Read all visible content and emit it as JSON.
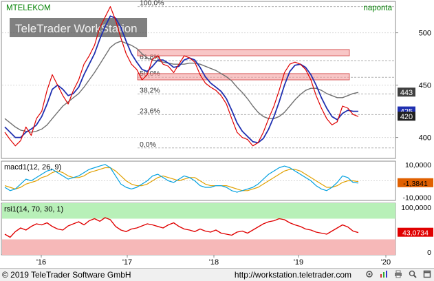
{
  "panel_main": {
    "symbol": "MTELEKOM",
    "period": "naponta",
    "watermark": "TeleTrader WorkStation",
    "price_axis": [
      "500",
      "450",
      "400"
    ],
    "last_badges": [
      {
        "label": "443",
        "color": "#404040"
      },
      {
        "label": "425",
        "color": "#1f2fb0"
      },
      {
        "label": "420",
        "color": "#202020"
      }
    ],
    "fib_labels": [
      "100,0%",
      "61,8%",
      "50,0%",
      "38,2%",
      "23,6%",
      "0,0%"
    ]
  },
  "panel_macd": {
    "label": "macd1(12, 26, 9)",
    "axis": [
      "10,0000",
      "-10,0000"
    ],
    "last_value": "-1,3841",
    "last_color": "#e06000"
  },
  "panel_rsi": {
    "label": "rsi1(14, 70, 30, 1)",
    "axis": [
      "100,0000",
      "0"
    ],
    "last_value": "43,0734",
    "last_color": "#e00000"
  },
  "time_axis": [
    "'16",
    "'17",
    "'18",
    "'19",
    "'20"
  ],
  "footer": {
    "copyright": "© 2019 TeleTrader Software GmbH",
    "url": "http://workstation.teletrader.com"
  },
  "colors": {
    "price": "#e00000",
    "ma_fast": "#1f2fb0",
    "ma_slow": "#707070",
    "zone": "#f4a0a0",
    "rsi_overbought": "#b8f0b8",
    "rsi_oversold": "#f6b8b8"
  },
  "chart_data": [
    {
      "type": "line",
      "title": "MTELEKOM",
      "x_ticks": [
        "'16",
        "'17",
        "'18",
        "'19",
        "'20"
      ],
      "ylim": [
        380,
        530
      ],
      "grid": true,
      "series": [
        {
          "values": [
            405,
            398,
            392,
            397,
            410,
            402,
            418,
            425,
            445,
            460,
            450,
            440,
            432,
            445,
            455,
            470,
            478,
            488,
            505,
            515,
            525,
            512,
            495,
            480,
            470,
            465,
            455,
            460,
            475,
            478,
            470,
            468,
            462,
            470,
            478,
            476,
            472,
            460,
            452,
            448,
            445,
            440,
            432,
            418,
            405,
            400,
            398,
            392,
            395,
            405,
            418,
            430,
            445,
            462,
            470,
            472,
            470,
            465,
            455,
            440,
            428,
            418,
            412,
            415,
            430,
            428,
            422,
            420
          ]
        },
        {
          "values": [
            410,
            405,
            400,
            400,
            405,
            408,
            412,
            420,
            432,
            446,
            450,
            446,
            440,
            442,
            448,
            460,
            470,
            480,
            494,
            506,
            516,
            514,
            505,
            492,
            480,
            472,
            465,
            463,
            468,
            474,
            474,
            471,
            467,
            468,
            474,
            476,
            474,
            467,
            458,
            452,
            448,
            444,
            437,
            426,
            414,
            406,
            401,
            396,
            395,
            399,
            408,
            420,
            434,
            450,
            463,
            469,
            470,
            467,
            460,
            450,
            438,
            428,
            420,
            417,
            423,
            426,
            425,
            425
          ]
        },
        {
          "values": [
            418,
            414,
            410,
            407,
            406,
            405,
            406,
            408,
            412,
            418,
            424,
            430,
            434,
            438,
            442,
            448,
            455,
            462,
            470,
            478,
            486,
            490,
            492,
            490,
            488,
            485,
            480,
            476,
            474,
            473,
            472,
            471,
            470,
            470,
            470,
            471,
            471,
            470,
            468,
            466,
            464,
            461,
            458,
            454,
            448,
            443,
            437,
            430,
            424,
            420,
            418,
            418,
            420,
            424,
            430,
            436,
            441,
            445,
            447,
            447,
            445,
            442,
            440,
            438,
            438,
            440,
            442,
            443
          ]
        }
      ],
      "zones": [
        [
          478,
          484
        ],
        [
          455,
          461
        ]
      ],
      "fibonacci": {
        "high": 525,
        "low": 390,
        "levels": [
          "100,0%",
          "61,8%",
          "50,0%",
          "38,2%",
          "23,6%",
          "0,0%"
        ]
      }
    },
    {
      "type": "line",
      "title": "macd1(12, 26, 9)",
      "ylim": [
        -12,
        12
      ],
      "series": [
        {
          "values": [
            -4,
            -6,
            -5,
            -2,
            1,
            0,
            2,
            4,
            6,
            7,
            5,
            3,
            1,
            2,
            3,
            5,
            7,
            8,
            9,
            10,
            8,
            3,
            -2,
            -4,
            -5,
            -4,
            -2,
            0,
            3,
            4,
            2,
            0,
            -1,
            1,
            3,
            2,
            0,
            -3,
            -4,
            -4,
            -3,
            -3,
            -4,
            -6,
            -7,
            -6,
            -5,
            -4,
            -2,
            1,
            4,
            6,
            8,
            9,
            8,
            6,
            4,
            2,
            0,
            -3,
            -5,
            -6,
            -4,
            -1,
            3,
            2,
            -1,
            -1.3841
          ]
        },
        {
          "values": [
            -3,
            -4,
            -5,
            -4,
            -2,
            -1,
            0,
            2,
            3,
            5,
            6,
            5,
            3,
            2,
            2,
            3,
            5,
            6,
            7,
            8,
            8,
            6,
            3,
            0,
            -2,
            -3,
            -3,
            -2,
            0,
            2,
            3,
            2,
            1,
            0,
            1,
            2,
            2,
            0,
            -2,
            -3,
            -3,
            -3,
            -3,
            -4,
            -5,
            -6,
            -6,
            -5,
            -4,
            -2,
            0,
            2,
            4,
            6,
            7,
            7,
            6,
            4,
            2,
            0,
            -2,
            -4,
            -4,
            -3,
            -1,
            0,
            0,
            -0.5
          ]
        }
      ]
    },
    {
      "type": "line",
      "title": "rsi1(14, 70, 30, 1)",
      "ylim": [
        0,
        100
      ],
      "bands": {
        "overbought": 70,
        "oversold": 30
      },
      "series": [
        {
          "values": [
            40,
            34,
            45,
            52,
            48,
            55,
            60,
            58,
            62,
            55,
            50,
            48,
            56,
            60,
            64,
            58,
            66,
            70,
            65,
            72,
            68,
            55,
            48,
            45,
            50,
            52,
            56,
            60,
            58,
            55,
            52,
            58,
            62,
            55,
            50,
            48,
            45,
            50,
            46,
            44,
            48,
            42,
            40,
            38,
            44,
            46,
            42,
            48,
            54,
            60,
            64,
            66,
            70,
            68,
            62,
            58,
            55,
            50,
            48,
            44,
            42,
            40,
            46,
            52,
            58,
            54,
            46,
            43.0734
          ]
        }
      ]
    }
  ]
}
